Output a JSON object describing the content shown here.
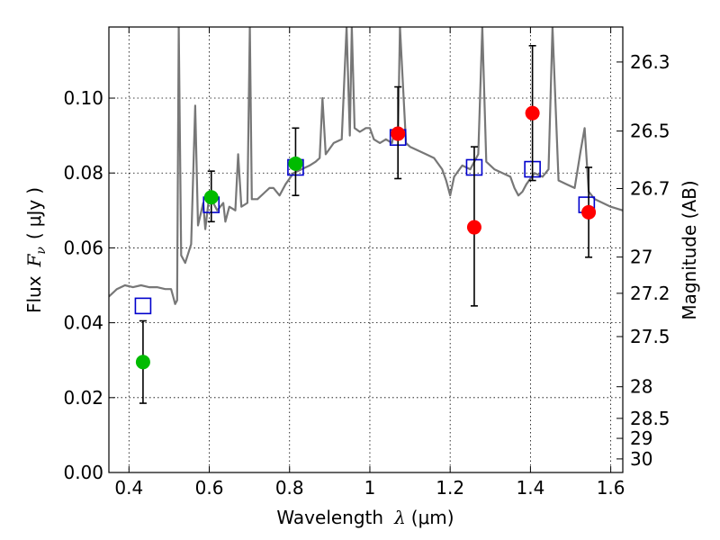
{
  "chart_data": {
    "type": "scatter",
    "title": "",
    "xlabel": {
      "prefix": "Wavelength",
      "symbol": "λ",
      "unit": "(μm)"
    },
    "ylabel": {
      "prefix": "Flux",
      "symbol": "F",
      "subscript": "ν",
      "unit": "μJy"
    },
    "y2label": "Magnitude (AB)",
    "xlim": [
      0.35,
      1.63
    ],
    "ylim": [
      0.0,
      0.119
    ],
    "grid": true,
    "legend": "none",
    "x_ticks": [
      {
        "value": 0.4,
        "label": "0.4"
      },
      {
        "value": 0.6,
        "label": "0.6"
      },
      {
        "value": 0.8,
        "label": "0.8"
      },
      {
        "value": 1.0,
        "label": "1"
      },
      {
        "value": 1.2,
        "label": "1.2"
      },
      {
        "value": 1.4,
        "label": "1.4"
      },
      {
        "value": 1.6,
        "label": "1.6"
      }
    ],
    "y_ticks": [
      {
        "value": 0.0,
        "label": "0.00"
      },
      {
        "value": 0.02,
        "label": "0.02"
      },
      {
        "value": 0.04,
        "label": "0.04"
      },
      {
        "value": 0.06,
        "label": "0.06"
      },
      {
        "value": 0.08,
        "label": "0.08"
      },
      {
        "value": 0.1,
        "label": "0.10"
      }
    ],
    "y2_ticks": [
      {
        "value": 26.3,
        "label": "26.3"
      },
      {
        "value": 26.5,
        "label": "26.5"
      },
      {
        "value": 26.7,
        "label": "26.7"
      },
      {
        "value": 27.0,
        "label": "27"
      },
      {
        "value": 27.2,
        "label": "27.2"
      },
      {
        "value": 27.5,
        "label": "27.5"
      },
      {
        "value": 28.0,
        "label": "28"
      },
      {
        "value": 28.5,
        "label": "28.5"
      },
      {
        "value": 29.0,
        "label": "29"
      },
      {
        "value": 30.0,
        "label": "30"
      }
    ],
    "magnitude_zero_point": 23.9,
    "model_spectrum": {
      "color": "#777777",
      "points": [
        [
          0.35,
          0.047
        ],
        [
          0.37,
          0.049
        ],
        [
          0.39,
          0.05
        ],
        [
          0.41,
          0.0495
        ],
        [
          0.43,
          0.05
        ],
        [
          0.45,
          0.0495
        ],
        [
          0.47,
          0.0495
        ],
        [
          0.49,
          0.049
        ],
        [
          0.505,
          0.049
        ],
        [
          0.51,
          0.047
        ],
        [
          0.515,
          0.045
        ],
        [
          0.52,
          0.046
        ],
        [
          0.524,
          0.119
        ],
        [
          0.53,
          0.058
        ],
        [
          0.54,
          0.056
        ],
        [
          0.555,
          0.061
        ],
        [
          0.565,
          0.098
        ],
        [
          0.572,
          0.066
        ],
        [
          0.585,
          0.072
        ],
        [
          0.59,
          0.065
        ],
        [
          0.6,
          0.074
        ],
        [
          0.62,
          0.07
        ],
        [
          0.635,
          0.072
        ],
        [
          0.64,
          0.067
        ],
        [
          0.65,
          0.071
        ],
        [
          0.665,
          0.07
        ],
        [
          0.672,
          0.085
        ],
        [
          0.68,
          0.071
        ],
        [
          0.695,
          0.072
        ],
        [
          0.701,
          0.119
        ],
        [
          0.706,
          0.073
        ],
        [
          0.72,
          0.073
        ],
        [
          0.74,
          0.075
        ],
        [
          0.75,
          0.076
        ],
        [
          0.76,
          0.076
        ],
        [
          0.775,
          0.074
        ],
        [
          0.79,
          0.077
        ],
        [
          0.81,
          0.08
        ],
        [
          0.83,
          0.081
        ],
        [
          0.85,
          0.082
        ],
        [
          0.865,
          0.083
        ],
        [
          0.875,
          0.084
        ],
        [
          0.882,
          0.1
        ],
        [
          0.89,
          0.085
        ],
        [
          0.91,
          0.088
        ],
        [
          0.93,
          0.089
        ],
        [
          0.942,
          0.119
        ],
        [
          0.95,
          0.09
        ],
        [
          0.955,
          0.119
        ],
        [
          0.962,
          0.092
        ],
        [
          0.975,
          0.091
        ],
        [
          0.99,
          0.092
        ],
        [
          1.0,
          0.092
        ],
        [
          1.01,
          0.089
        ],
        [
          1.025,
          0.088
        ],
        [
          1.04,
          0.089
        ],
        [
          1.055,
          0.088
        ],
        [
          1.063,
          0.092
        ],
        [
          1.07,
          0.089
        ],
        [
          1.075,
          0.119
        ],
        [
          1.09,
          0.088
        ],
        [
          1.1,
          0.087
        ],
        [
          1.12,
          0.086
        ],
        [
          1.14,
          0.085
        ],
        [
          1.16,
          0.084
        ],
        [
          1.18,
          0.081
        ],
        [
          1.19,
          0.078
        ],
        [
          1.2,
          0.074
        ],
        [
          1.21,
          0.079
        ],
        [
          1.23,
          0.082
        ],
        [
          1.25,
          0.081
        ],
        [
          1.27,
          0.085
        ],
        [
          1.28,
          0.119
        ],
        [
          1.29,
          0.083
        ],
        [
          1.31,
          0.081
        ],
        [
          1.33,
          0.08
        ],
        [
          1.35,
          0.079
        ],
        [
          1.36,
          0.076
        ],
        [
          1.37,
          0.074
        ],
        [
          1.38,
          0.075
        ],
        [
          1.39,
          0.077
        ],
        [
          1.41,
          0.08
        ],
        [
          1.43,
          0.079
        ],
        [
          1.445,
          0.081
        ],
        [
          1.455,
          0.119
        ],
        [
          1.47,
          0.078
        ],
        [
          1.49,
          0.077
        ],
        [
          1.51,
          0.076
        ],
        [
          1.525,
          0.086
        ],
        [
          1.535,
          0.092
        ],
        [
          1.545,
          0.075
        ],
        [
          1.56,
          0.073
        ],
        [
          1.58,
          0.072
        ],
        [
          1.6,
          0.071
        ],
        [
          1.63,
          0.07
        ]
      ]
    },
    "series": [
      {
        "marker": "square",
        "color": "#0000cc",
        "points": [
          [
            0.435,
            0.0445
          ],
          [
            0.605,
            0.0715
          ],
          [
            0.815,
            0.0815
          ],
          [
            1.07,
            0.0895
          ],
          [
            1.26,
            0.0815
          ],
          [
            1.405,
            0.081
          ],
          [
            1.54,
            0.0715
          ]
        ]
      },
      {
        "marker": "circle",
        "color": "#00bb00",
        "points": [
          {
            "x": 0.435,
            "y": 0.0295,
            "yerr": [
              0.011,
              0.011
            ]
          },
          {
            "x": 0.605,
            "y": 0.0735,
            "yerr": [
              0.0065,
              0.007
            ]
          },
          {
            "x": 0.815,
            "y": 0.0825,
            "yerr": [
              0.0085,
              0.0095
            ]
          }
        ]
      },
      {
        "marker": "circle",
        "color": "#ff0000",
        "points": [
          {
            "x": 1.07,
            "y": 0.0905,
            "yerr": [
              0.012,
              0.0125
            ]
          },
          {
            "x": 1.26,
            "y": 0.0655,
            "yerr": [
              0.021,
              0.0215
            ]
          },
          {
            "x": 1.405,
            "y": 0.096,
            "yerr": [
              0.018,
              0.018
            ]
          },
          {
            "x": 1.545,
            "y": 0.0695,
            "yerr": [
              0.012,
              0.012
            ]
          }
        ]
      }
    ]
  }
}
